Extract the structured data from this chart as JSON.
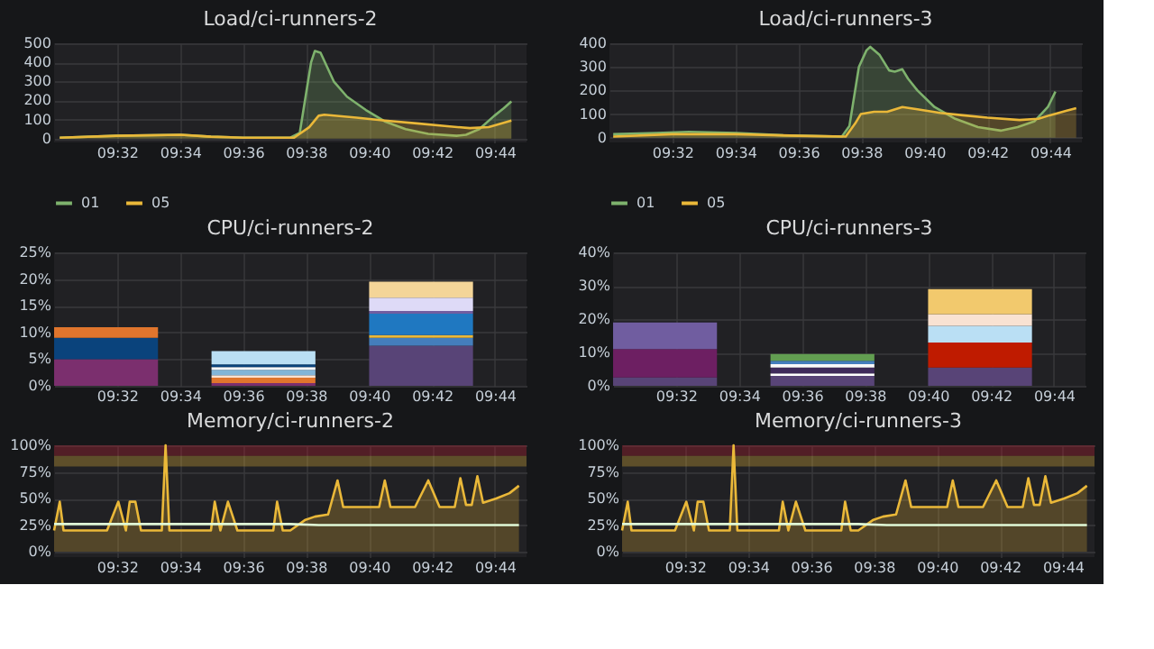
{
  "chart_data": [
    {
      "type": "area",
      "title": "Load/ci-runners-2",
      "xlim": [
        9.5,
        9.75
      ],
      "xticks": [
        {
          "value": 9.5333,
          "label": "09:32"
        },
        {
          "value": 9.5667,
          "label": "09:34"
        },
        {
          "value": 9.6,
          "label": "09:36"
        },
        {
          "value": 9.6333,
          "label": "09:38"
        },
        {
          "value": 9.6667,
          "label": "09:40"
        },
        {
          "value": 9.7,
          "label": "09:42"
        },
        {
          "value": 9.7333,
          "label": "09:44"
        }
      ],
      "ylim": [
        -20,
        500
      ],
      "yticks": [
        0,
        100,
        200,
        300,
        400,
        500
      ],
      "grid": true,
      "legend": "bottom",
      "series": [
        {
          "name": "01",
          "color": "#7eb26d",
          "x": [
            9.503,
            9.533,
            9.567,
            9.583,
            9.6,
            9.625,
            9.63,
            9.636,
            9.638,
            9.641,
            9.648,
            9.655,
            9.665,
            9.675,
            9.686,
            9.698,
            9.713,
            9.718,
            9.725,
            9.733,
            9.738,
            9.742
          ],
          "values": [
            5,
            15,
            20,
            10,
            5,
            5,
            30,
            400,
            460,
            450,
            300,
            220,
            150,
            90,
            50,
            25,
            15,
            20,
            50,
            120,
            160,
            195
          ]
        },
        {
          "name": "05",
          "color": "#eab839",
          "x": [
            9.503,
            9.533,
            9.567,
            9.583,
            9.6,
            9.627,
            9.635,
            9.64,
            9.643,
            9.66,
            9.675,
            9.692,
            9.708,
            9.72,
            9.73,
            9.735,
            9.742
          ],
          "values": [
            5,
            15,
            20,
            10,
            5,
            5,
            60,
            120,
            125,
            110,
            95,
            80,
            65,
            55,
            60,
            75,
            95
          ]
        }
      ]
    },
    {
      "type": "area",
      "title": "Load/ci-runners-3",
      "xlim": [
        9.5,
        9.75
      ],
      "xticks": [
        {
          "value": 9.5333,
          "label": "09:32"
        },
        {
          "value": 9.5667,
          "label": "09:34"
        },
        {
          "value": 9.6,
          "label": "09:36"
        },
        {
          "value": 9.6333,
          "label": "09:38"
        },
        {
          "value": 9.6667,
          "label": "09:40"
        },
        {
          "value": 9.7,
          "label": "09:42"
        },
        {
          "value": 9.7333,
          "label": "09:44"
        }
      ],
      "ylim": [
        -20,
        400
      ],
      "yticks": [
        0,
        100,
        200,
        300,
        400
      ],
      "grid": true,
      "legend": "bottom",
      "series": [
        {
          "name": "01",
          "color": "#7eb26d",
          "x": [
            9.502,
            9.525,
            9.542,
            9.567,
            9.592,
            9.623,
            9.627,
            9.632,
            9.636,
            9.638,
            9.643,
            9.648,
            9.651,
            9.655,
            9.658,
            9.663,
            9.672,
            9.683,
            9.695,
            9.707,
            9.716,
            9.725,
            9.732,
            9.736
          ],
          "values": [
            15,
            20,
            25,
            20,
            10,
            5,
            50,
            300,
            370,
            385,
            350,
            285,
            280,
            290,
            250,
            200,
            130,
            80,
            45,
            30,
            45,
            70,
            130,
            195
          ]
        },
        {
          "name": "05",
          "color": "#eab839",
          "x": [
            9.502,
            9.533,
            9.567,
            9.6,
            9.625,
            9.63,
            9.633,
            9.64,
            9.647,
            9.655,
            9.663,
            9.675,
            9.687,
            9.7,
            9.717,
            9.727,
            9.733,
            9.742,
            9.747
          ],
          "values": [
            5,
            15,
            15,
            8,
            5,
            60,
            100,
            110,
            110,
            130,
            120,
            105,
            95,
            85,
            75,
            80,
            95,
            115,
            125
          ]
        }
      ]
    },
    {
      "type": "bar",
      "stacked": true,
      "title": "CPU/ci-runners-2",
      "x": [
        9.5275,
        9.6108,
        9.6942
      ],
      "xlim": [
        9.5,
        9.75
      ],
      "xticks": [
        {
          "value": 9.5333,
          "label": "09:32"
        },
        {
          "value": 9.5667,
          "label": "09:34"
        },
        {
          "value": 9.6,
          "label": "09:36"
        },
        {
          "value": 9.6333,
          "label": "09:38"
        },
        {
          "value": 9.6667,
          "label": "09:40"
        },
        {
          "value": 9.7,
          "label": "09:42"
        },
        {
          "value": 9.7333,
          "label": "09:44"
        }
      ],
      "ylim": [
        0,
        25
      ],
      "yticks": [
        {
          "value": 0,
          "label": "0%"
        },
        {
          "value": 5,
          "label": "5%"
        },
        {
          "value": 10,
          "label": "10%"
        },
        {
          "value": 15,
          "label": "15%"
        },
        {
          "value": 20,
          "label": "20%"
        },
        {
          "value": 25,
          "label": "25%"
        }
      ],
      "grid": true,
      "series": [
        {
          "color": "#7b2f6e",
          "values": [
            5,
            0.5,
            null
          ]
        },
        {
          "color": "#0a437c",
          "values": [
            4,
            null,
            null
          ]
        },
        {
          "color": "#e0752d",
          "values": [
            2,
            1,
            null
          ]
        },
        {
          "color": "#f9e2d2",
          "values": [
            null,
            0.5,
            null
          ]
        },
        {
          "color": "#82b5d8",
          "values": [
            null,
            1,
            null
          ]
        },
        {
          "color": "#ffffff",
          "values": [
            null,
            0.5,
            null
          ]
        },
        {
          "color": "#0a437c",
          "values": [
            null,
            0.5,
            null
          ]
        },
        {
          "color": "#badff4",
          "values": [
            null,
            2.5,
            null
          ]
        },
        {
          "color": "#584477",
          "values": [
            null,
            null,
            7.5
          ]
        },
        {
          "color": "#447ebc",
          "values": [
            null,
            null,
            1.5
          ]
        },
        {
          "color": "#eab839",
          "values": [
            null,
            null,
            0.5
          ]
        },
        {
          "color": "#1f78c1",
          "values": [
            null,
            null,
            4
          ]
        },
        {
          "color": "#705da0",
          "values": [
            null,
            null,
            0.5
          ]
        },
        {
          "color": "#dedaf7",
          "values": [
            null,
            null,
            2.5
          ]
        },
        {
          "color": "#f4d598",
          "values": [
            null,
            null,
            3
          ]
        }
      ]
    },
    {
      "type": "bar",
      "stacked": true,
      "title": "CPU/ci-runners-3",
      "x": [
        9.5275,
        9.6108,
        9.6942
      ],
      "xlim": [
        9.5,
        9.75
      ],
      "xticks": [
        {
          "value": 9.5333,
          "label": "09:32"
        },
        {
          "value": 9.5667,
          "label": "09:34"
        },
        {
          "value": 9.6,
          "label": "09:36"
        },
        {
          "value": 9.6333,
          "label": "09:38"
        },
        {
          "value": 9.6667,
          "label": "09:40"
        },
        {
          "value": 9.7,
          "label": "09:42"
        },
        {
          "value": 9.7333,
          "label": "09:44"
        }
      ],
      "ylim": [
        0,
        40
      ],
      "yticks": [
        {
          "value": 0,
          "label": "0%"
        },
        {
          "value": 10,
          "label": "10%"
        },
        {
          "value": 20,
          "label": "20%"
        },
        {
          "value": 30,
          "label": "30%"
        },
        {
          "value": 40,
          "label": "40%"
        }
      ],
      "grid": true,
      "series": [
        {
          "color": "#584477",
          "values": [
            2.5,
            3,
            5.5
          ]
        },
        {
          "color": "#6d1f62",
          "values": [
            8.5,
            null,
            null
          ]
        },
        {
          "color": "#705da0",
          "values": [
            8,
            null,
            null
          ]
        },
        {
          "color": "#ffffff",
          "values": [
            null,
            0.7,
            null
          ]
        },
        {
          "color": "#3f2b5b",
          "values": [
            null,
            1.8,
            null
          ]
        },
        {
          "color": "#f9f9f9",
          "values": [
            null,
            1,
            null
          ]
        },
        {
          "color": "#447ebc",
          "values": [
            null,
            1,
            null
          ]
        },
        {
          "color": "#629e51",
          "values": [
            null,
            2,
            null
          ]
        },
        {
          "color": "#bf1b00",
          "values": [
            null,
            null,
            7.5
          ]
        },
        {
          "color": "#badff4",
          "values": [
            null,
            null,
            5
          ]
        },
        {
          "color": "#f9e2d2",
          "values": [
            null,
            null,
            3.5
          ]
        },
        {
          "color": "#f2c96d",
          "values": [
            null,
            null,
            7.5
          ]
        }
      ]
    },
    {
      "type": "line",
      "title": "Memory/ci-runners-2",
      "xlim": [
        9.5,
        9.75
      ],
      "xticks": [
        {
          "value": 9.5333,
          "label": "09:32"
        },
        {
          "value": 9.5667,
          "label": "09:34"
        },
        {
          "value": 9.6,
          "label": "09:36"
        },
        {
          "value": 9.6333,
          "label": "09:38"
        },
        {
          "value": 9.6667,
          "label": "09:40"
        },
        {
          "value": 9.7,
          "label": "09:42"
        },
        {
          "value": 9.7333,
          "label": "09:44"
        }
      ],
      "ylim": [
        -5,
        100
      ],
      "yticks": [
        {
          "value": 0,
          "label": "0%"
        },
        {
          "value": 25,
          "label": "25%"
        },
        {
          "value": 50,
          "label": "50%"
        },
        {
          "value": 75,
          "label": "75%"
        },
        {
          "value": 100,
          "label": "100%"
        }
      ],
      "grid": true,
      "bands": [
        {
          "axis": "y",
          "from": 90,
          "to": 100,
          "color": "#c4162a"
        },
        {
          "axis": "y",
          "from": 80,
          "to": 90,
          "color": "#eab839"
        }
      ],
      "series": [
        {
          "type": "area",
          "color": "#eab839",
          "x": [
            9.5,
            9.503,
            9.505,
            9.528,
            9.534,
            9.538,
            9.54,
            9.543,
            9.546,
            9.557,
            9.559,
            9.561,
            9.583,
            9.585,
            9.588,
            9.592,
            9.597,
            9.616,
            9.618,
            9.621,
            9.625,
            9.633,
            9.638,
            9.645,
            9.65,
            9.653,
            9.672,
            9.675,
            9.678,
            9.691,
            9.698,
            9.704,
            9.712,
            9.715,
            9.718,
            9.721,
            9.724,
            9.727,
            9.734,
            9.741,
            9.746
          ],
          "values": [
            20,
            47,
            20,
            20,
            47,
            20,
            47,
            47,
            20,
            20,
            100,
            20,
            20,
            47,
            20,
            47,
            20,
            20,
            47,
            20,
            20,
            30,
            33,
            35,
            67,
            42,
            42,
            67,
            42,
            42,
            67,
            42,
            42,
            69,
            44,
            44,
            71,
            46,
            50,
            55,
            62
          ]
        },
        {
          "type": "line",
          "color": "#e0f9d7",
          "x": [
            9.5,
            9.625,
            9.64,
            9.746
          ],
          "values": [
            26,
            26,
            25,
            25
          ]
        }
      ]
    },
    {
      "type": "line",
      "title": "Memory/ci-runners-3",
      "xlim": [
        9.5,
        9.75
      ],
      "xticks": [
        {
          "value": 9.5333,
          "label": "09:32"
        },
        {
          "value": 9.5667,
          "label": "09:34"
        },
        {
          "value": 9.6,
          "label": "09:36"
        },
        {
          "value": 9.6333,
          "label": "09:38"
        },
        {
          "value": 9.6667,
          "label": "09:40"
        },
        {
          "value": 9.7,
          "label": "09:42"
        },
        {
          "value": 9.7333,
          "label": "09:44"
        }
      ],
      "ylim": [
        -5,
        100
      ],
      "yticks": [
        {
          "value": 0,
          "label": "0%"
        },
        {
          "value": 25,
          "label": "25%"
        },
        {
          "value": 50,
          "label": "50%"
        },
        {
          "value": 75,
          "label": "75%"
        },
        {
          "value": 100,
          "label": "100%"
        }
      ],
      "grid": true,
      "bands": [
        {
          "axis": "y",
          "from": 90,
          "to": 100,
          "color": "#c4162a"
        },
        {
          "axis": "y",
          "from": 80,
          "to": 90,
          "color": "#eab839"
        }
      ],
      "series": [
        {
          "type": "area",
          "color": "#eab839",
          "x": [
            9.5,
            9.503,
            9.505,
            9.528,
            9.534,
            9.538,
            9.54,
            9.543,
            9.546,
            9.557,
            9.559,
            9.561,
            9.583,
            9.585,
            9.588,
            9.592,
            9.597,
            9.616,
            9.618,
            9.621,
            9.625,
            9.633,
            9.638,
            9.645,
            9.65,
            9.653,
            9.672,
            9.675,
            9.678,
            9.691,
            9.698,
            9.704,
            9.712,
            9.715,
            9.718,
            9.721,
            9.724,
            9.727,
            9.734,
            9.741,
            9.746
          ],
          "values": [
            20,
            47,
            20,
            20,
            47,
            20,
            47,
            47,
            20,
            20,
            100,
            20,
            20,
            47,
            20,
            47,
            20,
            20,
            47,
            20,
            20,
            30,
            33,
            35,
            67,
            42,
            42,
            67,
            42,
            42,
            67,
            42,
            42,
            69,
            44,
            44,
            71,
            46,
            50,
            55,
            62
          ]
        },
        {
          "type": "line",
          "color": "#e0f9d7",
          "x": [
            9.5,
            9.625,
            9.64,
            9.746
          ],
          "values": [
            26,
            26,
            25,
            25
          ]
        }
      ]
    }
  ]
}
